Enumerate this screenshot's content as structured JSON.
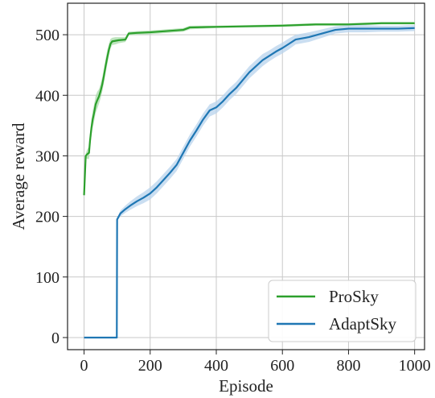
{
  "chart_data": {
    "type": "line",
    "title": "",
    "xlabel": "Episode",
    "ylabel": "Average reward",
    "xlim": [
      -50,
      1030
    ],
    "ylim": [
      -20,
      552
    ],
    "xticks": [
      0,
      200,
      400,
      600,
      800,
      1000
    ],
    "yticks": [
      0,
      100,
      200,
      300,
      400,
      500
    ],
    "grid": true,
    "legend_position": "bottom-right",
    "series": [
      {
        "name": "ProSky",
        "color": "#2ca02c",
        "band_color": "#a9dba9",
        "points": [
          [
            0,
            235
          ],
          [
            5,
            300
          ],
          [
            10,
            303
          ],
          [
            15,
            305
          ],
          [
            18,
            325
          ],
          [
            22,
            345
          ],
          [
            26,
            360
          ],
          [
            30,
            370
          ],
          [
            35,
            385
          ],
          [
            40,
            392
          ],
          [
            45,
            398
          ],
          [
            50,
            407
          ],
          [
            55,
            418
          ],
          [
            60,
            432
          ],
          [
            65,
            448
          ],
          [
            70,
            462
          ],
          [
            75,
            475
          ],
          [
            80,
            485
          ],
          [
            85,
            489
          ],
          [
            95,
            490
          ],
          [
            105,
            491
          ],
          [
            125,
            492
          ],
          [
            135,
            502
          ],
          [
            160,
            503
          ],
          [
            200,
            504
          ],
          [
            250,
            506
          ],
          [
            300,
            508
          ],
          [
            320,
            512
          ],
          [
            400,
            513
          ],
          [
            500,
            514
          ],
          [
            600,
            515
          ],
          [
            650,
            516
          ],
          [
            700,
            517
          ],
          [
            800,
            517
          ],
          [
            850,
            518
          ],
          [
            900,
            519
          ],
          [
            1000,
            519
          ]
        ],
        "band": [
          0,
          4,
          8,
          10,
          12,
          14,
          14,
          14,
          14,
          14,
          12,
          12,
          12,
          12,
          12,
          12,
          10,
          8,
          6,
          6,
          5,
          4,
          3,
          3,
          3,
          3,
          3,
          3,
          2,
          2,
          2,
          2,
          2,
          2,
          2,
          2,
          2
        ]
      },
      {
        "name": "AdaptSky",
        "color": "#1f77b4",
        "band_color": "#b8d3ec",
        "points": [
          [
            0,
            0
          ],
          [
            50,
            0
          ],
          [
            99,
            0
          ],
          [
            100,
            195
          ],
          [
            110,
            205
          ],
          [
            125,
            212
          ],
          [
            140,
            218
          ],
          [
            160,
            225
          ],
          [
            180,
            231
          ],
          [
            200,
            238
          ],
          [
            220,
            248
          ],
          [
            240,
            260
          ],
          [
            260,
            272
          ],
          [
            280,
            285
          ],
          [
            300,
            305
          ],
          [
            320,
            325
          ],
          [
            340,
            342
          ],
          [
            360,
            360
          ],
          [
            380,
            375
          ],
          [
            400,
            380
          ],
          [
            420,
            390
          ],
          [
            440,
            402
          ],
          [
            460,
            412
          ],
          [
            480,
            425
          ],
          [
            500,
            438
          ],
          [
            520,
            448
          ],
          [
            540,
            458
          ],
          [
            560,
            465
          ],
          [
            580,
            472
          ],
          [
            600,
            478
          ],
          [
            620,
            485
          ],
          [
            640,
            492
          ],
          [
            680,
            496
          ],
          [
            720,
            502
          ],
          [
            760,
            508
          ],
          [
            800,
            510
          ],
          [
            850,
            510
          ],
          [
            900,
            510
          ],
          [
            950,
            510
          ],
          [
            1000,
            511
          ]
        ],
        "band": [
          0,
          0,
          0,
          3,
          5,
          6,
          7,
          8,
          9,
          10,
          10,
          10,
          10,
          10,
          10,
          10,
          10,
          10,
          10,
          10,
          10,
          10,
          10,
          10,
          10,
          10,
          10,
          9,
          9,
          9,
          9,
          8,
          8,
          7,
          6,
          6,
          6,
          5,
          5,
          5
        ]
      }
    ]
  }
}
